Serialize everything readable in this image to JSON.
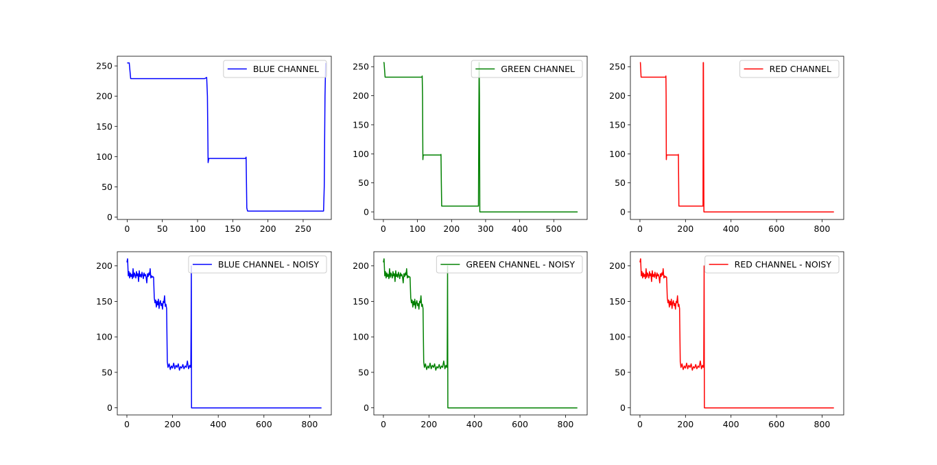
{
  "chart_data": [
    {
      "type": "line",
      "legend": "BLUE CHANNEL",
      "color": "#0000ff",
      "legend_position": "upper right",
      "xlim": [
        -14,
        290
      ],
      "ylim": [
        -4,
        266
      ],
      "xticks": [
        0,
        50,
        100,
        150,
        200,
        250
      ],
      "yticks": [
        0,
        50,
        100,
        150,
        200,
        250
      ],
      "x": [
        0,
        3,
        5,
        20,
        60,
        100,
        110,
        113,
        114,
        115,
        116,
        117,
        118,
        130,
        150,
        168,
        169,
        170,
        171,
        172,
        200,
        250,
        278,
        279,
        280,
        281,
        282
      ],
      "y": [
        255,
        255,
        229,
        229,
        229,
        229,
        229,
        231,
        200,
        90,
        97,
        97,
        97,
        97,
        97,
        97,
        99,
        15,
        10,
        10,
        10,
        10,
        10,
        10,
        50,
        200,
        255
      ]
    },
    {
      "type": "line",
      "legend": "GREEN CHANNEL",
      "color": "#008000",
      "legend_position": "upper right",
      "xlim": [
        -28,
        598
      ],
      "ylim": [
        -13,
        268
      ],
      "xticks": [
        0,
        100,
        200,
        300,
        400,
        500
      ],
      "yticks": [
        0,
        50,
        100,
        150,
        200,
        250
      ],
      "x": [
        0,
        2,
        5,
        100,
        113,
        114,
        115,
        116,
        117,
        118,
        150,
        168,
        169,
        170,
        171,
        172,
        250,
        278,
        279,
        280,
        281,
        282,
        283,
        284,
        285,
        400,
        570
      ],
      "y": [
        257,
        257,
        232,
        232,
        232,
        234,
        200,
        90,
        98,
        98,
        98,
        98,
        99,
        50,
        10,
        10,
        10,
        10,
        10,
        150,
        257,
        200,
        0,
        0,
        0,
        0,
        0
      ]
    },
    {
      "type": "line",
      "legend": "RED CHANNEL",
      "color": "#ff0000",
      "legend_position": "upper right",
      "xlim": [
        -42,
        895
      ],
      "ylim": [
        -13,
        268
      ],
      "xticks": [
        0,
        200,
        400,
        600,
        800
      ],
      "yticks": [
        0,
        50,
        100,
        150,
        200,
        250
      ],
      "x": [
        0,
        2,
        5,
        100,
        113,
        114,
        115,
        116,
        117,
        118,
        150,
        168,
        169,
        170,
        171,
        172,
        250,
        276,
        277,
        278,
        279,
        280,
        281,
        282,
        283,
        500,
        852
      ],
      "y": [
        257,
        257,
        232,
        232,
        232,
        234,
        200,
        90,
        98,
        98,
        98,
        98,
        99,
        50,
        10,
        10,
        10,
        10,
        10,
        257,
        257,
        100,
        0,
        0,
        0,
        0,
        0
      ]
    },
    {
      "type": "line",
      "legend": "BLUE CHANNEL - NOISY",
      "color": "#0000ff",
      "legend_position": "upper right",
      "xlim": [
        -42,
        895
      ],
      "ylim": [
        -10,
        220
      ],
      "xticks": [
        0,
        200,
        400,
        600,
        800
      ],
      "yticks": [
        0,
        50,
        100,
        150,
        200
      ],
      "x": [
        0,
        3,
        6,
        9,
        12,
        15,
        18,
        21,
        24,
        27,
        30,
        33,
        36,
        39,
        42,
        45,
        48,
        51,
        54,
        57,
        60,
        63,
        66,
        69,
        72,
        75,
        78,
        81,
        84,
        87,
        90,
        93,
        96,
        99,
        102,
        105,
        108,
        111,
        114,
        117,
        120,
        123,
        126,
        129,
        132,
        135,
        138,
        141,
        144,
        147,
        150,
        153,
        156,
        159,
        162,
        165,
        168,
        171,
        174,
        177,
        180,
        185,
        190,
        195,
        200,
        205,
        210,
        215,
        220,
        225,
        230,
        235,
        240,
        245,
        250,
        255,
        260,
        265,
        270,
        275,
        278,
        280,
        281,
        282,
        283,
        285,
        400,
        600,
        852
      ],
      "y": [
        205,
        210,
        186,
        192,
        183,
        190,
        185,
        188,
        182,
        196,
        184,
        190,
        187,
        183,
        192,
        186,
        189,
        178,
        193,
        185,
        188,
        184,
        191,
        187,
        182,
        190,
        186,
        188,
        184,
        176,
        189,
        185,
        190,
        187,
        196,
        183,
        186,
        184,
        185,
        184,
        155,
        148,
        152,
        142,
        150,
        145,
        153,
        140,
        148,
        151,
        144,
        147,
        139,
        150,
        148,
        158,
        143,
        146,
        140,
        65,
        57,
        62,
        54,
        59,
        56,
        63,
        55,
        60,
        57,
        62,
        53,
        58,
        56,
        61,
        55,
        59,
        57,
        66,
        55,
        60,
        57,
        58,
        120,
        200,
        0,
        0,
        0,
        0,
        0
      ]
    },
    {
      "type": "line",
      "legend": "GREEN CHANNEL - NOISY",
      "color": "#008000",
      "legend_position": "upper right",
      "xlim": [
        -42,
        895
      ],
      "ylim": [
        -10,
        220
      ],
      "xticks": [
        0,
        200,
        400,
        600,
        800
      ],
      "yticks": [
        0,
        50,
        100,
        150,
        200
      ],
      "x": [
        0,
        3,
        6,
        9,
        12,
        15,
        18,
        21,
        24,
        27,
        30,
        33,
        36,
        39,
        42,
        45,
        48,
        51,
        54,
        57,
        60,
        63,
        66,
        69,
        72,
        75,
        78,
        81,
        84,
        87,
        90,
        93,
        96,
        99,
        102,
        105,
        108,
        111,
        114,
        117,
        120,
        123,
        126,
        129,
        132,
        135,
        138,
        141,
        144,
        147,
        150,
        153,
        156,
        159,
        162,
        165,
        168,
        171,
        174,
        177,
        180,
        185,
        190,
        195,
        200,
        205,
        210,
        215,
        220,
        225,
        230,
        235,
        240,
        245,
        250,
        255,
        260,
        265,
        270,
        275,
        278,
        280,
        281,
        282,
        283,
        285,
        400,
        600,
        852
      ],
      "y": [
        205,
        210,
        186,
        192,
        183,
        190,
        185,
        188,
        182,
        196,
        184,
        190,
        187,
        183,
        192,
        186,
        189,
        178,
        193,
        185,
        188,
        184,
        191,
        187,
        182,
        190,
        186,
        188,
        184,
        176,
        189,
        185,
        190,
        187,
        196,
        183,
        186,
        184,
        185,
        184,
        155,
        148,
        152,
        142,
        150,
        145,
        153,
        140,
        148,
        151,
        144,
        147,
        139,
        150,
        148,
        158,
        143,
        146,
        140,
        65,
        57,
        62,
        54,
        59,
        56,
        63,
        55,
        60,
        57,
        62,
        53,
        58,
        56,
        61,
        55,
        59,
        57,
        66,
        55,
        60,
        57,
        58,
        120,
        200,
        0,
        0,
        0,
        0,
        0
      ]
    },
    {
      "type": "line",
      "legend": "RED CHANNEL - NOISY",
      "color": "#ff0000",
      "legend_position": "upper right",
      "xlim": [
        -42,
        895
      ],
      "ylim": [
        -10,
        220
      ],
      "xticks": [
        0,
        200,
        400,
        600,
        800
      ],
      "yticks": [
        0,
        50,
        100,
        150,
        200
      ],
      "x": [
        0,
        3,
        6,
        9,
        12,
        15,
        18,
        21,
        24,
        27,
        30,
        33,
        36,
        39,
        42,
        45,
        48,
        51,
        54,
        57,
        60,
        63,
        66,
        69,
        72,
        75,
        78,
        81,
        84,
        87,
        90,
        93,
        96,
        99,
        102,
        105,
        108,
        111,
        114,
        117,
        120,
        123,
        126,
        129,
        132,
        135,
        138,
        141,
        144,
        147,
        150,
        153,
        156,
        159,
        162,
        165,
        168,
        171,
        174,
        177,
        180,
        185,
        190,
        195,
        200,
        205,
        210,
        215,
        220,
        225,
        230,
        235,
        240,
        245,
        250,
        255,
        260,
        265,
        270,
        275,
        278,
        280,
        281,
        282,
        283,
        285,
        400,
        600,
        852
      ],
      "y": [
        205,
        210,
        186,
        192,
        183,
        190,
        185,
        188,
        182,
        196,
        184,
        190,
        187,
        183,
        192,
        186,
        189,
        178,
        193,
        185,
        188,
        184,
        191,
        187,
        182,
        190,
        186,
        188,
        184,
        176,
        189,
        185,
        190,
        187,
        196,
        183,
        186,
        184,
        185,
        184,
        155,
        148,
        152,
        142,
        150,
        145,
        153,
        140,
        148,
        151,
        144,
        147,
        139,
        150,
        148,
        158,
        143,
        146,
        140,
        65,
        57,
        62,
        54,
        59,
        56,
        63,
        55,
        60,
        57,
        62,
        53,
        58,
        56,
        61,
        55,
        59,
        57,
        66,
        55,
        60,
        57,
        58,
        120,
        200,
        0,
        0,
        0,
        0,
        0
      ]
    }
  ]
}
